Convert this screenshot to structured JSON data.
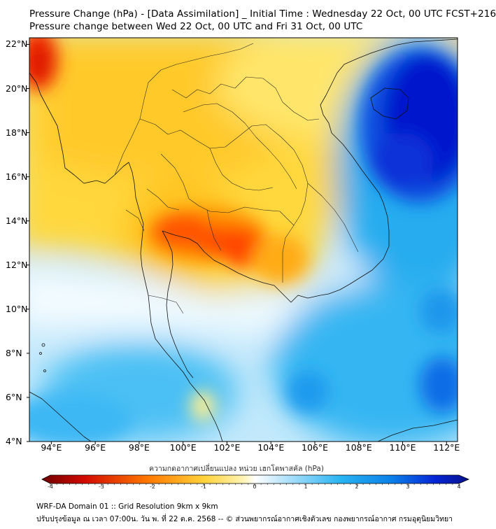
{
  "header": {
    "title_line1": "Pressure Change (hPa) - [Data Assimilation] _ Initial Time : Wednesday 22 Oct, 00 UTC FCST+216",
    "title_line2": "Pressure change between Wed 22 Oct, 00 UTC and Fri 31 Oct, 00 UTC"
  },
  "map": {
    "lat_labels": [
      "22°N",
      "20°N",
      "18°N",
      "16°N",
      "14°N",
      "12°N",
      "10°N",
      "8°N",
      "6°N",
      "4°N"
    ],
    "lon_labels": [
      "94°E",
      "96°E",
      "98°E",
      "100°E",
      "102°E",
      "104°E",
      "106°E",
      "108°E",
      "110°E",
      "112°E"
    ],
    "lat_range": [
      4,
      22.3
    ],
    "lon_range": [
      93,
      112.5
    ],
    "colors": {
      "strong_fall": "#d11000",
      "fall": "#ff8a00",
      "slight_fall": "#ffe14a",
      "neutral": "#ffffff",
      "slight_rise": "#a9def8",
      "rise": "#1aa7ef",
      "strong_rise": "#0010c8"
    }
  },
  "colorbar": {
    "title": "ความกดอากาศเปลี่ยนแปลง หน่วย เฮกโตพาสคัล (hPa)",
    "ticks": [
      "-4",
      "-3",
      "-2",
      "-1",
      "0",
      "1",
      "2",
      "3",
      "4"
    ],
    "range": [
      -4,
      4
    ]
  },
  "footer": {
    "line1": "WRF-DA Domain 01 :: Grid Resolution 9km x 9km",
    "line2": "ปรับปรุงข้อมูล ณ เวลา 07:00น. วัน พ. ที่ 22 ต.ค. 2568 -- © ส่วนพยากรณ์อากาศเชิงตัวเลข กองพยากรณ์อากาศ กรมอุตุนิยมวิทยา"
  }
}
